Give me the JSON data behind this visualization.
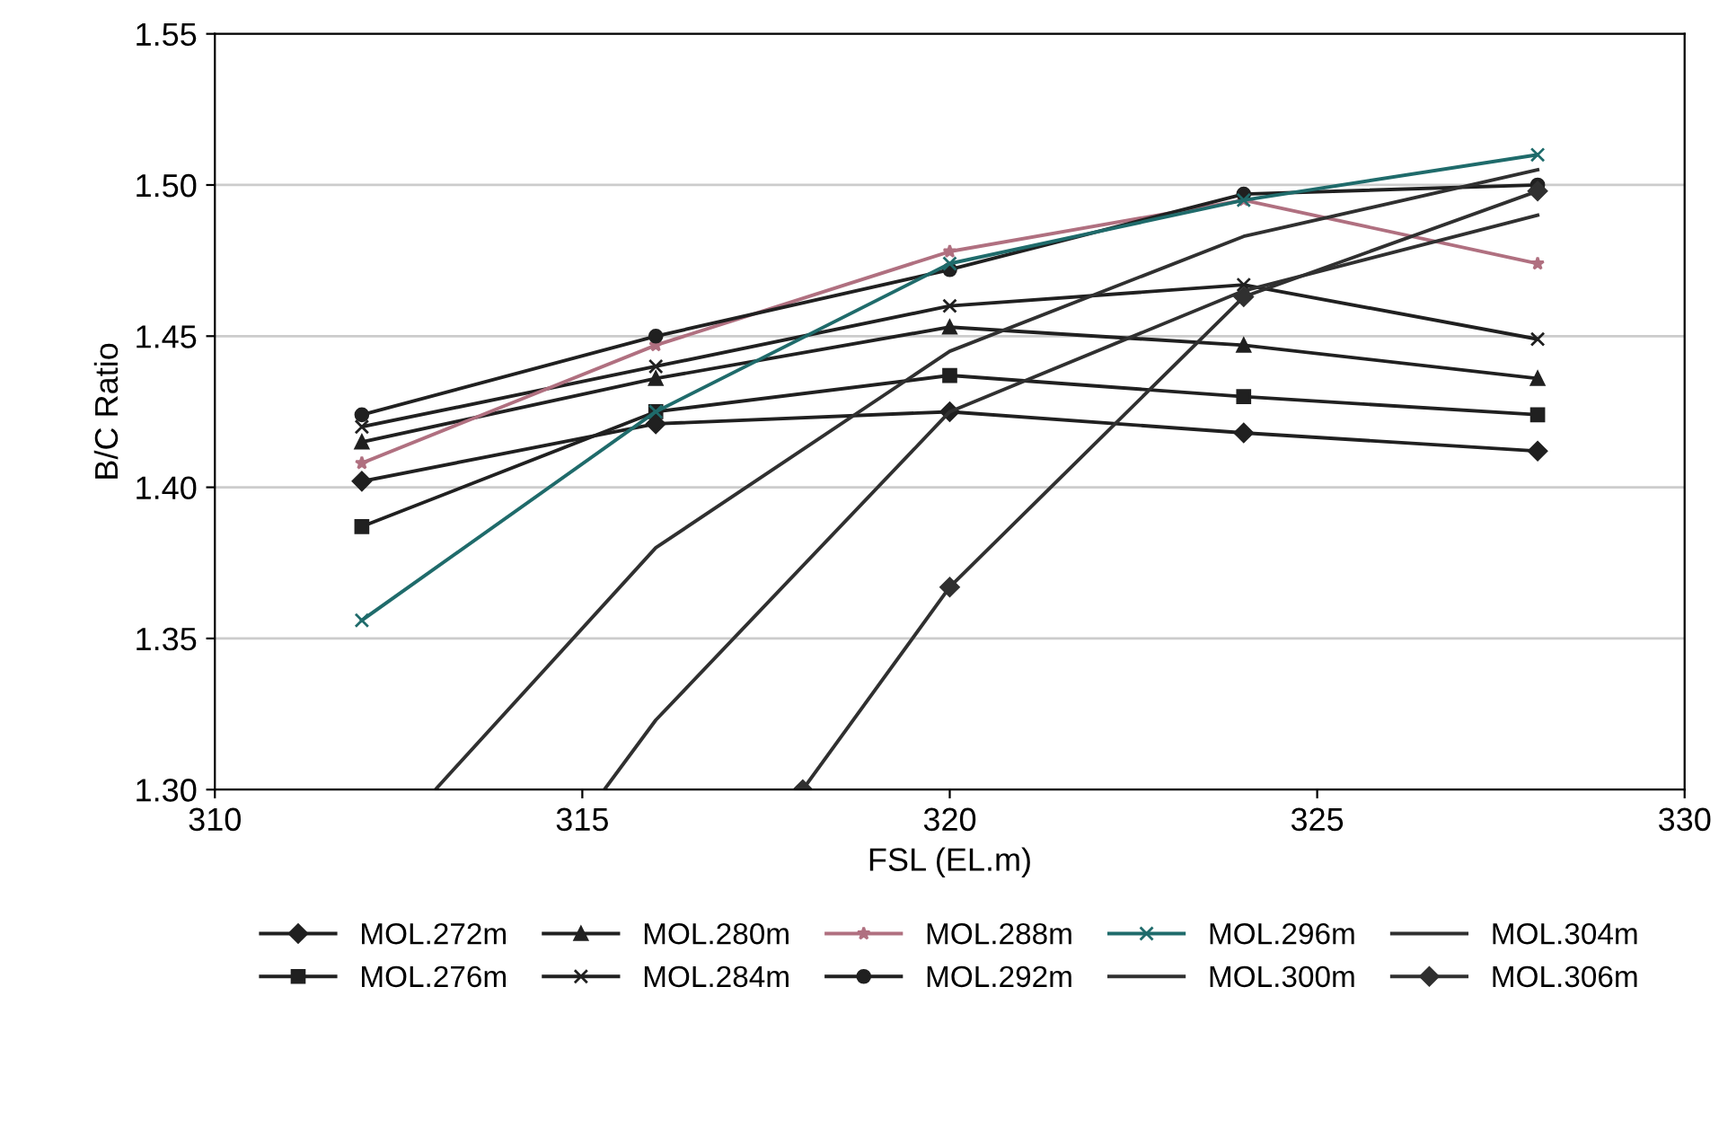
{
  "chart_data": {
    "type": "line",
    "xlabel": "FSL (EL.m)",
    "ylabel": "B/C Ratio",
    "xlim": [
      310,
      330
    ],
    "xticks": [
      310,
      315,
      320,
      325,
      330
    ],
    "ylim": [
      1.3,
      1.55
    ],
    "yticks": [
      {
        "value": 1.3,
        "label": "1.30"
      },
      {
        "value": 1.35,
        "label": "1.35"
      },
      {
        "value": 1.4,
        "label": "1.40"
      },
      {
        "value": 1.45,
        "label": "1.45"
      },
      {
        "value": 1.5,
        "label": "1.50"
      },
      {
        "value": 1.55,
        "label": "1.55"
      }
    ],
    "grid": "y",
    "legend": "bottom",
    "series": [
      {
        "name": "MOL.272m",
        "color": "#202020",
        "marker": "diamond",
        "x": [
          312,
          316,
          320,
          324,
          328
        ],
        "values": [
          1.402,
          1.421,
          1.425,
          1.418,
          1.412
        ]
      },
      {
        "name": "MOL.276m",
        "color": "#202020",
        "marker": "square",
        "x": [
          312,
          316,
          320,
          324,
          328
        ],
        "values": [
          1.387,
          1.425,
          1.437,
          1.43,
          1.424
        ]
      },
      {
        "name": "MOL.280m",
        "color": "#202020",
        "marker": "triangle",
        "x": [
          312,
          316,
          320,
          324,
          328
        ],
        "values": [
          1.415,
          1.436,
          1.453,
          1.447,
          1.436
        ]
      },
      {
        "name": "MOL.284m",
        "color": "#202020",
        "marker": "cross",
        "x": [
          312,
          316,
          320,
          324,
          328
        ],
        "values": [
          1.42,
          1.44,
          1.46,
          1.467,
          1.449
        ]
      },
      {
        "name": "MOL.288m",
        "color": "#b07080",
        "marker": "star",
        "x": [
          312,
          316,
          320,
          324,
          328
        ],
        "values": [
          1.408,
          1.447,
          1.478,
          1.495,
          1.474
        ]
      },
      {
        "name": "MOL.292m",
        "color": "#202020",
        "marker": "circle",
        "x": [
          312,
          316,
          320,
          324,
          328
        ],
        "values": [
          1.424,
          1.45,
          1.472,
          1.497,
          1.5
        ]
      },
      {
        "name": "MOL.296m",
        "color": "#1f6b6b",
        "marker": "cross",
        "x": [
          312,
          316,
          320,
          324,
          328
        ],
        "values": [
          1.356,
          1.425,
          1.474,
          1.495,
          1.51
        ]
      },
      {
        "name": "MOL.300m",
        "color": "#303030",
        "marker": "none",
        "x": [
          313,
          316,
          320,
          324,
          328
        ],
        "values": [
          1.3,
          1.38,
          1.445,
          1.483,
          1.505
        ]
      },
      {
        "name": "MOL.304m",
        "color": "#303030",
        "marker": "none",
        "x": [
          315.3,
          316,
          320,
          324,
          328
        ],
        "values": [
          1.3,
          1.323,
          1.425,
          1.465,
          1.49
        ]
      },
      {
        "name": "MOL.306m",
        "color": "#303030",
        "marker": "diamond",
        "x": [
          318,
          320,
          324,
          328
        ],
        "values": [
          1.3,
          1.367,
          1.463,
          1.498
        ]
      }
    ]
  }
}
